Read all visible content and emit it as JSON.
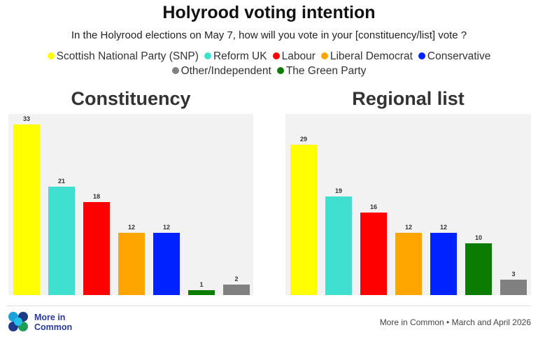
{
  "chart_data": [
    {
      "type": "bar",
      "title": "Constituency",
      "categories": [
        "Scottish National Party (SNP)",
        "Reform UK",
        "Labour",
        "Liberal Democrat",
        "Conservative",
        "The Green Party",
        "Other/Independent"
      ],
      "values": [
        33,
        21,
        18,
        12,
        12,
        1,
        2
      ],
      "colors": [
        "#ffff00",
        "#40e0d0",
        "#ff0000",
        "#ffa500",
        "#0022ff",
        "#0a7d00",
        "#808080"
      ],
      "ylim": [
        0,
        35
      ],
      "grid": false
    },
    {
      "type": "bar",
      "title": "Regional list",
      "categories": [
        "Scottish National Party (SNP)",
        "Reform UK",
        "Labour",
        "Liberal Democrat",
        "Conservative",
        "The Green Party",
        "Other/Independent"
      ],
      "values": [
        29,
        19,
        16,
        12,
        12,
        10,
        3
      ],
      "colors": [
        "#ffff00",
        "#40e0d0",
        "#ff0000",
        "#ffa500",
        "#0022ff",
        "#0a7d00",
        "#808080"
      ],
      "ylim": [
        0,
        35
      ],
      "grid": false
    }
  ],
  "header": {
    "title": "Holyrood voting intention",
    "subtitle": "In the Holyrood elections on May 7, how will you vote in your [constituency/list] vote ?"
  },
  "legend": [
    {
      "label": "Scottish National Party (SNP)",
      "color": "#ffff00"
    },
    {
      "label": "Reform UK",
      "color": "#40e0d0"
    },
    {
      "label": "Labour",
      "color": "#ff0000"
    },
    {
      "label": "Liberal Democrat",
      "color": "#ffa500"
    },
    {
      "label": "Conservative",
      "color": "#0022ff"
    },
    {
      "label": "Other/Independent",
      "color": "#808080"
    },
    {
      "label": "The Green Party",
      "color": "#0a7d00"
    }
  ],
  "footer": {
    "logo": "More in Common",
    "source": "More in Common • March and April 2026"
  }
}
